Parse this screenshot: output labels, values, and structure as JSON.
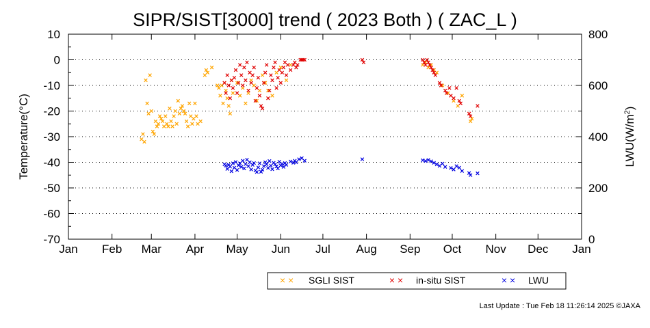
{
  "chart_data": {
    "type": "scatter",
    "title": "SIPR/SIST[3000] trend ( 2023 Both ) ( ZAC_L )",
    "ylabel": "Temperature(°C)",
    "y2label": "LWU(W/m",
    "y2label_sup": "2",
    "y2label_close": ")",
    "ylim": [
      -70,
      10
    ],
    "y2lim": [
      0,
      800
    ],
    "yticks": [
      "10",
      "0",
      "-10",
      "-20",
      "-30",
      "-40",
      "-50",
      "-60",
      "-70"
    ],
    "y2ticks": [
      "800",
      "600",
      "400",
      "200",
      "0"
    ],
    "months": [
      "Jan",
      "Feb",
      "Mar",
      "Apr",
      "May",
      "Jun",
      "Jul",
      "Aug",
      "Sep",
      "Oct",
      "Nov",
      "Dec",
      "Jan"
    ],
    "grid": "dotted horizontal",
    "legend_placement": "bottom",
    "series": [
      {
        "name": "SGLI SIST",
        "color": "#FFA500",
        "axis": "left",
        "points": [
          [
            "Feb 22",
            -31
          ],
          [
            "Feb 23",
            -29
          ],
          [
            "Feb 24",
            -32
          ],
          [
            "Feb 25",
            -8
          ],
          [
            "Feb 26",
            -17
          ],
          [
            "Feb 27",
            -21
          ],
          [
            "Feb 28",
            -6
          ],
          [
            "Mar 1",
            -20
          ],
          [
            "Mar 2",
            -28
          ],
          [
            "Mar 3",
            -29
          ],
          [
            "Mar 4",
            -24
          ],
          [
            "Mar 5",
            -26
          ],
          [
            "Mar 6",
            -25
          ],
          [
            "Mar 7",
            -22
          ],
          [
            "Mar 8",
            -23
          ],
          [
            "Mar 9",
            -24
          ],
          [
            "Mar 10",
            -26
          ],
          [
            "Mar 11",
            -22
          ],
          [
            "Mar 12",
            -25
          ],
          [
            "Mar 13",
            -26
          ],
          [
            "Mar 14",
            -19
          ],
          [
            "Mar 15",
            -24
          ],
          [
            "Mar 16",
            -26
          ],
          [
            "Mar 17",
            -22
          ],
          [
            "Mar 18",
            -20
          ],
          [
            "Mar 19",
            -25
          ],
          [
            "Mar 20",
            -16
          ],
          [
            "Mar 21",
            -21
          ],
          [
            "Mar 22",
            -19
          ],
          [
            "Mar 23",
            -18
          ],
          [
            "Mar 24",
            -20
          ],
          [
            "Mar 25",
            -21
          ],
          [
            "Mar 26",
            -24
          ],
          [
            "Mar 27",
            -26
          ],
          [
            "Mar 28",
            -17
          ],
          [
            "Mar 29",
            -22
          ],
          [
            "Mar 30",
            -25
          ],
          [
            "Mar 31",
            -23
          ],
          [
            "Apr 1",
            -17
          ],
          [
            "Apr 2",
            -22
          ],
          [
            "Apr 3",
            -25
          ],
          [
            "Apr 5",
            -24
          ],
          [
            "Apr 8",
            -6
          ],
          [
            "Apr 9",
            -4
          ],
          [
            "Apr 10",
            -5
          ],
          [
            "Apr 13",
            -3
          ],
          [
            "Apr 17",
            -10
          ],
          [
            "Apr 18",
            -11
          ],
          [
            "Apr 19",
            -14
          ],
          [
            "Apr 20",
            -10
          ],
          [
            "Apr 21",
            -17
          ],
          [
            "Apr 22",
            -9
          ],
          [
            "Apr 23",
            -12
          ],
          [
            "Apr 24",
            -15
          ],
          [
            "Apr 25",
            -18
          ],
          [
            "Apr 26",
            -21
          ],
          [
            "Apr 27",
            -8
          ],
          [
            "Apr 28",
            -13
          ],
          [
            "May 1",
            -9
          ],
          [
            "May 3",
            -14
          ],
          [
            "May 5",
            -11
          ],
          [
            "May 7",
            -17
          ],
          [
            "May 9",
            -13
          ],
          [
            "May 11",
            -8
          ],
          [
            "May 13",
            -10
          ],
          [
            "May 15",
            -16
          ],
          [
            "May 17",
            -12
          ],
          [
            "May 19",
            -6
          ],
          [
            "May 21",
            -9
          ],
          [
            "May 23",
            -12
          ],
          [
            "May 26",
            -14
          ],
          [
            "May 29",
            -5
          ],
          [
            "Jun 1",
            -3
          ],
          [
            "Jun 5",
            -8
          ],
          [
            "Jun 8",
            -2
          ],
          [
            "Sep 10",
            -2
          ],
          [
            "Sep 12",
            -1
          ],
          [
            "Sep 14",
            -3
          ],
          [
            "Sep 16",
            -2
          ],
          [
            "Sep 18",
            -4
          ],
          [
            "Sep 20",
            -5
          ],
          [
            "Sep 24",
            -10
          ],
          [
            "Sep 28",
            -13
          ],
          [
            "Oct 2",
            -16
          ],
          [
            "Oct 5",
            -18
          ],
          [
            "Oct 8",
            -14
          ],
          [
            "Oct 14",
            -24
          ],
          [
            "Oct 15",
            -23
          ]
        ]
      },
      {
        "name": "in-situ SIST",
        "color": "#E00000",
        "axis": "left",
        "points": [
          [
            "Apr 22",
            -9
          ],
          [
            "Apr 23",
            -13
          ],
          [
            "Apr 24",
            -6
          ],
          [
            "Apr 25",
            -10
          ],
          [
            "Apr 26",
            -15
          ],
          [
            "Apr 27",
            -8
          ],
          [
            "Apr 28",
            -11
          ],
          [
            "Apr 29",
            -7
          ],
          [
            "Apr 30",
            -4
          ],
          [
            "May 1",
            -13
          ],
          [
            "May 2",
            -9
          ],
          [
            "May 3",
            -2
          ],
          [
            "May 4",
            -6
          ],
          [
            "May 5",
            -10
          ],
          [
            "May 6",
            -3
          ],
          [
            "May 7",
            -8
          ],
          [
            "May 8",
            -1
          ],
          [
            "May 9",
            -12
          ],
          [
            "May 10",
            -5
          ],
          [
            "May 11",
            -9
          ],
          [
            "May 12",
            -6
          ],
          [
            "May 13",
            -3
          ],
          [
            "May 14",
            -16
          ],
          [
            "May 15",
            -11
          ],
          [
            "May 16",
            -7
          ],
          [
            "May 17",
            -14
          ],
          [
            "May 18",
            -18
          ],
          [
            "May 19",
            -19
          ],
          [
            "May 20",
            -9
          ],
          [
            "May 21",
            -5
          ],
          [
            "May 22",
            -2
          ],
          [
            "May 23",
            -15
          ],
          [
            "May 24",
            -12
          ],
          [
            "May 25",
            -6
          ],
          [
            "May 26",
            -8
          ],
          [
            "May 27",
            -3
          ],
          [
            "May 28",
            -1
          ],
          [
            "May 29",
            -11
          ],
          [
            "May 30",
            -7
          ],
          [
            "May 31",
            -4
          ],
          [
            "Jun 1",
            -9
          ],
          [
            "Jun 2",
            -5
          ],
          [
            "Jun 3",
            -3
          ],
          [
            "Jun 4",
            -1
          ],
          [
            "Jun 5",
            -6
          ],
          [
            "Jun 6",
            -2
          ],
          [
            "Jun 8",
            -4
          ],
          [
            "Jun 10",
            -2
          ],
          [
            "Jun 11",
            -1
          ],
          [
            "Jun 12",
            -3
          ],
          [
            "Jun 13",
            -2
          ],
          [
            "Jun 15",
            0
          ],
          [
            "Jun 16",
            0
          ],
          [
            "Jun 17",
            0
          ],
          [
            "Jun 18",
            0
          ],
          [
            "Jul 29",
            0
          ],
          [
            "Jul 30",
            -1
          ],
          [
            "Sep 10",
            0
          ],
          [
            "Sep 11",
            -1
          ],
          [
            "Sep 12",
            -2
          ],
          [
            "Sep 13",
            0
          ],
          [
            "Sep 14",
            -1
          ],
          [
            "Sep 15",
            -2
          ],
          [
            "Sep 16",
            -3
          ],
          [
            "Sep 17",
            -4
          ],
          [
            "Sep 18",
            -5
          ],
          [
            "Sep 19",
            -6
          ],
          [
            "Sep 22",
            -9
          ],
          [
            "Sep 23",
            -10
          ],
          [
            "Sep 26",
            -12
          ],
          [
            "Sep 27",
            -13
          ],
          [
            "Sep 29",
            -11
          ],
          [
            "Sep 30",
            -14
          ],
          [
            "Oct 2",
            -15
          ],
          [
            "Oct 4",
            -11
          ],
          [
            "Oct 6",
            -16
          ],
          [
            "Oct 7",
            -17
          ],
          [
            "Oct 13",
            -21
          ],
          [
            "Oct 14",
            -22
          ],
          [
            "Oct 19",
            -18
          ]
        ]
      },
      {
        "name": "LWU",
        "color": "#0000E0",
        "axis": "right",
        "points": [
          [
            "Apr 22",
            292
          ],
          [
            "Apr 23",
            287
          ],
          [
            "Apr 24",
            274
          ],
          [
            "Apr 25",
            290
          ],
          [
            "Apr 26",
            283
          ],
          [
            "Apr 27",
            265
          ],
          [
            "Apr 28",
            296
          ],
          [
            "Apr 29",
            279
          ],
          [
            "Apr 30",
            301
          ],
          [
            "May 1",
            270
          ],
          [
            "May 2",
            288
          ],
          [
            "May 3",
            296
          ],
          [
            "May 4",
            282
          ],
          [
            "May 5",
            306
          ],
          [
            "May 6",
            276
          ],
          [
            "May 7",
            293
          ],
          [
            "May 8",
            310
          ],
          [
            "May 9",
            285
          ],
          [
            "May 10",
            300
          ],
          [
            "May 11",
            272
          ],
          [
            "May 12",
            290
          ],
          [
            "May 13",
            297
          ],
          [
            "May 14",
            268
          ],
          [
            "May 15",
            262
          ],
          [
            "May 16",
            280
          ],
          [
            "May 17",
            296
          ],
          [
            "May 18",
            263
          ],
          [
            "May 19",
            271
          ],
          [
            "May 20",
            285
          ],
          [
            "May 21",
            300
          ],
          [
            "May 22",
            292
          ],
          [
            "May 23",
            278
          ],
          [
            "May 24",
            305
          ],
          [
            "May 25",
            287
          ],
          [
            "May 26",
            273
          ],
          [
            "May 27",
            298
          ],
          [
            "May 28",
            292
          ],
          [
            "May 29",
            284
          ],
          [
            "May 30",
            276
          ],
          [
            "May 31",
            302
          ],
          [
            "Jun 1",
            288
          ],
          [
            "Jun 2",
            294
          ],
          [
            "Jun 3",
            282
          ],
          [
            "Jun 4",
            297
          ],
          [
            "Jun 5",
            290
          ],
          [
            "Jun 8",
            303
          ],
          [
            "Jun 10",
            298
          ],
          [
            "Jun 11",
            306
          ],
          [
            "Jun 12",
            300
          ],
          [
            "Jun 14",
            312
          ],
          [
            "Jun 16",
            316
          ],
          [
            "Jun 18",
            306
          ],
          [
            "Jul 29",
            312
          ],
          [
            "Sep 10",
            308
          ],
          [
            "Sep 12",
            305
          ],
          [
            "Sep 14",
            309
          ],
          [
            "Sep 16",
            304
          ],
          [
            "Sep 18",
            298
          ],
          [
            "Sep 20",
            292
          ],
          [
            "Sep 22",
            286
          ],
          [
            "Sep 24",
            295
          ],
          [
            "Sep 26",
            282
          ],
          [
            "Sep 30",
            278
          ],
          [
            "Oct 2",
            272
          ],
          [
            "Oct 4",
            285
          ],
          [
            "Oct 6",
            279
          ],
          [
            "Oct 8",
            266
          ],
          [
            "Oct 13",
            258
          ],
          [
            "Oct 14",
            250
          ],
          [
            "Oct 19",
            257
          ]
        ]
      }
    ]
  },
  "legend": {
    "items": [
      "SGLI SIST",
      "in-situ SIST",
      "LWU"
    ],
    "marker": "× ×"
  },
  "footer": {
    "update_text": "Last Update : Tue Feb 18 11:26:14 2025  ©JAXA"
  }
}
